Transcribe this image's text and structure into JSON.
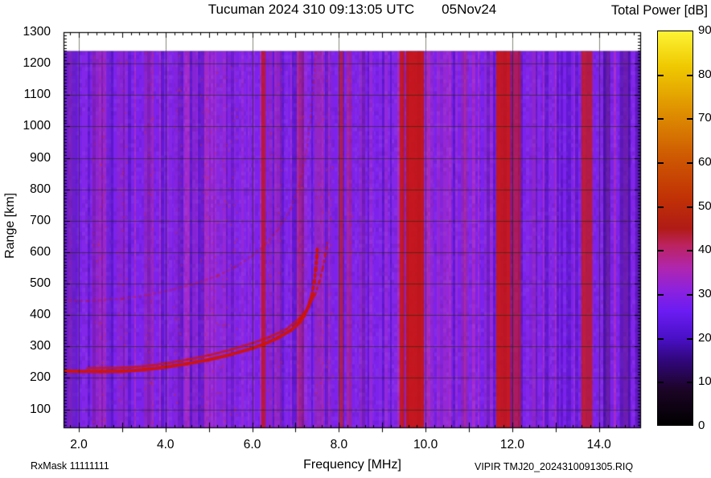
{
  "header": {
    "title_main": "Tucuman 2024 310 09:13:05 UTC",
    "title_date": "05Nov24"
  },
  "footer": {
    "rx_mask": "RxMask 11111111",
    "file_name": "VIPIR  TMJ20_2024310091305.RIQ"
  },
  "chart_data": {
    "type": "heatmap",
    "title": "Tucuman 2024 310 09:13:05 UTC",
    "date": "05Nov24",
    "x_axis": {
      "label": "Frequency [MHz]",
      "min": 1.648,
      "max": 14.97,
      "gridline_ticks": [
        2,
        4,
        6,
        8,
        10,
        12,
        14
      ],
      "tick_labels": [
        "2.0",
        "4.0",
        "6.0",
        "8.0",
        "10.0",
        "12.0",
        "14.0"
      ],
      "minor_step": 0.2,
      "grid": true
    },
    "y_axis": {
      "label": "Range [km]",
      "min": 40,
      "max": 1300,
      "data_top": 1240,
      "tick_values": [
        100,
        200,
        300,
        400,
        500,
        600,
        700,
        800,
        900,
        1000,
        1100,
        1200,
        1300
      ],
      "tick_labels": [
        "100",
        "200",
        "300",
        "400",
        "500",
        "600",
        "700",
        "800",
        "900",
        "1000",
        "1100",
        "1200",
        "1300"
      ],
      "minor_step": 10,
      "grid_step": 100
    },
    "power_scale": {
      "label": "Total Power [dB]",
      "min": 0,
      "max": 90,
      "tick_values": [
        0,
        10,
        20,
        30,
        40,
        50,
        60,
        70,
        80,
        90
      ],
      "tick_labels": [
        "0",
        "10",
        "20",
        "30",
        "40",
        "50",
        "60",
        "70",
        "80",
        "90"
      ],
      "gradient_stops": [
        {
          "v": 0,
          "c": "#000000"
        },
        {
          "v": 8,
          "c": "#1c0426"
        },
        {
          "v": 15,
          "c": "#32077e"
        },
        {
          "v": 20,
          "c": "#4a10c8"
        },
        {
          "v": 26,
          "c": "#6b1cf2"
        },
        {
          "v": 31,
          "c": "#8d22dd"
        },
        {
          "v": 36,
          "c": "#b026ad"
        },
        {
          "v": 41,
          "c": "#bc2360"
        },
        {
          "v": 45,
          "c": "#b01b15"
        },
        {
          "v": 52,
          "c": "#c13205"
        },
        {
          "v": 62,
          "c": "#cf5c02"
        },
        {
          "v": 72,
          "c": "#df9201"
        },
        {
          "v": 82,
          "c": "#efc901"
        },
        {
          "v": 90,
          "c": "#fdf335"
        }
      ]
    },
    "background": {
      "base_color": "#7c22ec",
      "column_palette": [
        {
          "c": "#5f17cf",
          "w": 0.18
        },
        {
          "c": "#7c22ec",
          "w": 0.4
        },
        {
          "c": "#8527e6",
          "w": 0.18
        },
        {
          "c": "#9829d8",
          "w": 0.14
        },
        {
          "c": "#aa2cc6",
          "w": 0.1
        }
      ],
      "speckle_color": "#d2301e"
    },
    "grid_color": "rgba(30,40,8,0.55)",
    "rfi_bands": [
      {
        "f0": 1.648,
        "f1": 1.97,
        "color": "#4714a8",
        "alpha": 0.4
      },
      {
        "f0": 2.3,
        "f1": 2.62,
        "color": "#b02898",
        "alpha": 0.33,
        "noisy": true
      },
      {
        "f0": 2.64,
        "f1": 2.8,
        "color": "#5016b8",
        "alpha": 0.3
      },
      {
        "f0": 2.88,
        "f1": 3.1,
        "color": "#aa28a2",
        "alpha": 0.28,
        "noisy": true
      },
      {
        "f0": 3.5,
        "f1": 3.73,
        "color": "#b02890",
        "alpha": 0.33,
        "noisy": true
      },
      {
        "f0": 4.18,
        "f1": 4.37,
        "color": "#a029b0",
        "alpha": 0.22,
        "noisy": true
      },
      {
        "f0": 4.55,
        "f1": 4.72,
        "color": "#5016b8",
        "alpha": 0.2
      },
      {
        "f0": 4.8,
        "f1": 5.65,
        "color": "#9f2bc4",
        "alpha": 0.18,
        "noisy": true
      },
      {
        "f0": 6.21,
        "f1": 6.31,
        "color": "#cc1508",
        "alpha": 0.75
      },
      {
        "f0": 6.35,
        "f1": 6.46,
        "color": "#b82878",
        "alpha": 0.28,
        "noisy": true
      },
      {
        "f0": 6.52,
        "f1": 6.68,
        "color": "#b42884",
        "alpha": 0.3,
        "noisy": true
      },
      {
        "f0": 7.04,
        "f1": 7.19,
        "color": "#c41f30",
        "alpha": 0.4,
        "noisy": true
      },
      {
        "f0": 7.44,
        "f1": 7.64,
        "color": "#b82478",
        "alpha": 0.3,
        "noisy": true
      },
      {
        "f0": 7.7,
        "f1": 7.86,
        "color": "#aa2ba6",
        "alpha": 0.22,
        "noisy": true
      },
      {
        "f0": 8.02,
        "f1": 8.1,
        "color": "#c41d10",
        "alpha": 0.7
      },
      {
        "f0": 8.18,
        "f1": 8.3,
        "color": "#c02050",
        "alpha": 0.4,
        "noisy": true
      },
      {
        "f0": 8.48,
        "f1": 8.62,
        "color": "#b02880",
        "alpha": 0.22
      },
      {
        "f0": 9.4,
        "f1": 9.52,
        "color": "#cb1506",
        "alpha": 0.8
      },
      {
        "f0": 9.55,
        "f1": 9.96,
        "color": "#cb1506",
        "alpha": 0.88
      },
      {
        "f0": 10.05,
        "f1": 10.2,
        "color": "#aa2ba6",
        "alpha": 0.25
      },
      {
        "f0": 10.3,
        "f1": 10.46,
        "color": "#aa2ba6",
        "alpha": 0.22
      },
      {
        "f0": 10.82,
        "f1": 10.97,
        "color": "#bb2355",
        "alpha": 0.3
      },
      {
        "f0": 11.36,
        "f1": 11.48,
        "color": "#aa2ba6",
        "alpha": 0.2
      },
      {
        "f0": 11.63,
        "f1": 11.97,
        "color": "#cb1506",
        "alpha": 0.85
      },
      {
        "f0": 12.0,
        "f1": 12.2,
        "color": "#cb1506",
        "alpha": 0.6
      },
      {
        "f0": 12.43,
        "f1": 12.56,
        "color": "#b02880",
        "alpha": 0.22
      },
      {
        "f0": 13.59,
        "f1": 13.85,
        "color": "#c71808",
        "alpha": 0.72
      },
      {
        "f0": 14.1,
        "f1": 14.26,
        "color": "#320b70",
        "alpha": 0.45
      },
      {
        "f0": 14.48,
        "f1": 14.72,
        "color": "#380d7c",
        "alpha": 0.42
      },
      {
        "f0": 14.84,
        "f1": 14.97,
        "color": "#380d7c",
        "alpha": 0.4
      }
    ],
    "echo_traces": {
      "color": "#d01405",
      "dotted_above_km": 460,
      "o_mode": [
        [
          1.648,
          222
        ],
        [
          2.0,
          221
        ],
        [
          2.5,
          220
        ],
        [
          3.0,
          221
        ],
        [
          3.5,
          226
        ],
        [
          4.0,
          234
        ],
        [
          4.5,
          245
        ],
        [
          5.0,
          258
        ],
        [
          5.5,
          274
        ],
        [
          6.0,
          294
        ],
        [
          6.3,
          309
        ],
        [
          6.6,
          328
        ],
        [
          6.9,
          352
        ],
        [
          7.1,
          378
        ],
        [
          7.2,
          398
        ],
        [
          7.3,
          428
        ],
        [
          7.38,
          465
        ],
        [
          7.43,
          505
        ],
        [
          7.465,
          545
        ],
        [
          7.49,
          585
        ],
        [
          7.505,
          618
        ]
      ],
      "x_mode": [
        [
          2.2,
          231
        ],
        [
          3.0,
          232
        ],
        [
          3.5,
          237
        ],
        [
          4.0,
          246
        ],
        [
          4.5,
          258
        ],
        [
          5.0,
          272
        ],
        [
          5.5,
          289
        ],
        [
          6.0,
          310
        ],
        [
          6.4,
          330
        ],
        [
          6.8,
          356
        ],
        [
          7.1,
          390
        ],
        [
          7.3,
          425
        ],
        [
          7.45,
          465
        ],
        [
          7.55,
          505
        ],
        [
          7.63,
          550
        ],
        [
          7.69,
          592
        ],
        [
          7.73,
          628
        ]
      ],
      "second_hop": [
        [
          1.648,
          448
        ],
        [
          2.2,
          445
        ],
        [
          3.0,
          452
        ],
        [
          3.6,
          464
        ],
        [
          4.2,
          482
        ],
        [
          4.8,
          505
        ],
        [
          5.2,
          525
        ],
        [
          5.6,
          552
        ],
        [
          6.0,
          588
        ],
        [
          6.3,
          625
        ],
        [
          6.6,
          672
        ],
        [
          6.9,
          740
        ],
        [
          7.1,
          820
        ],
        [
          7.25,
          920
        ],
        [
          7.35,
          1030
        ],
        [
          7.42,
          1140
        ],
        [
          7.47,
          1240
        ]
      ]
    }
  }
}
